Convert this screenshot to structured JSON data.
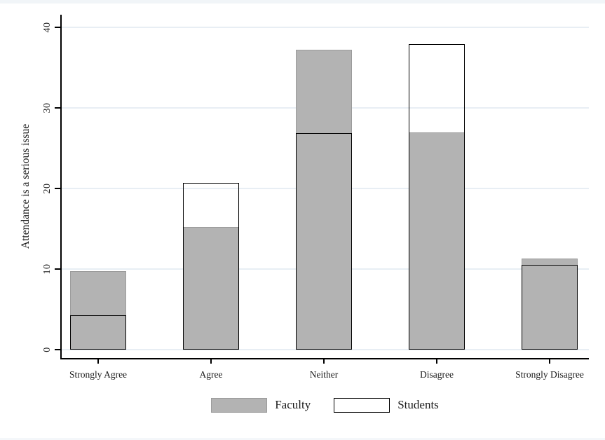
{
  "chart_data": {
    "type": "bar",
    "subtype": "overlaid-hollow",
    "title": "",
    "xlabel": "",
    "ylabel": "Attendance is a serious issue",
    "categories": [
      "Strongly Agree",
      "Agree",
      "Neither",
      "Disagree",
      "Strongly Disagree"
    ],
    "series": [
      {
        "name": "Faculty",
        "values": [
          9.7,
          15.2,
          37.2,
          27.0,
          11.3
        ],
        "fill": "#b3b3b3",
        "border_color": "#9b9b9b",
        "border_px": 1
      },
      {
        "name": "Students",
        "values": [
          4.3,
          20.7,
          26.9,
          37.9,
          10.5
        ],
        "fill": "none",
        "border_color": "#000000",
        "border_px": 1.5
      }
    ],
    "ylim": [
      0,
      40
    ],
    "yticks": [
      0,
      10,
      20,
      30,
      40
    ],
    "grid": true,
    "gridline_color": "#e8eef4",
    "legend_position": "bottom"
  },
  "legend": {
    "items": [
      {
        "label": "Faculty"
      },
      {
        "label": "Students"
      }
    ]
  }
}
